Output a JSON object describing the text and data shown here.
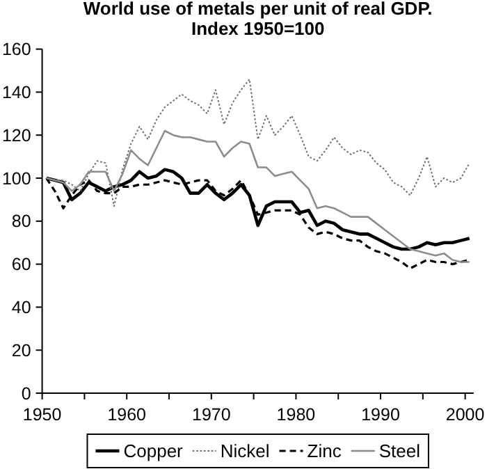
{
  "chart_data": {
    "type": "line",
    "title": "World use of metals per unit of real GDP.",
    "subtitle": "Index 1950=100",
    "x": [
      1950.5,
      1951.5,
      1952.5,
      1953.5,
      1954.5,
      1955.5,
      1956.5,
      1957.5,
      1958.5,
      1959.5,
      1960.5,
      1961.5,
      1962.5,
      1963.5,
      1964.5,
      1965.5,
      1966.5,
      1967.5,
      1968.5,
      1969.5,
      1970.5,
      1971.5,
      1972.5,
      1973.5,
      1974.5,
      1975.5,
      1976.5,
      1977.5,
      1978.5,
      1979.5,
      1980.5,
      1981.5,
      1982.5,
      1983.5,
      1984.5,
      1985.5,
      1986.5,
      1987.5,
      1988.5,
      1989.5,
      1990.5,
      1991.5,
      1992.5,
      1993.5,
      1994.5,
      1995.5,
      1996.5,
      1997.5,
      1998.5,
      1999.5,
      2000.5
    ],
    "series": [
      {
        "name": "Copper",
        "color": "#000000",
        "line_style": "solid",
        "values": [
          100,
          99,
          98,
          90,
          93,
          98,
          96,
          94,
          96,
          97,
          99,
          103,
          100,
          101,
          104,
          103,
          100,
          93,
          93,
          97,
          93,
          90,
          93,
          97,
          92,
          78,
          87,
          89,
          89,
          89,
          84,
          85,
          78,
          80,
          79,
          76,
          75,
          74,
          74,
          72,
          70,
          68,
          67,
          67,
          68,
          70,
          69,
          70,
          70,
          71,
          72
        ]
      },
      {
        "name": "Nickel",
        "color": "#6e6e6e",
        "line_style": "dotted",
        "values": [
          100,
          99,
          99,
          97,
          94,
          102,
          108,
          107,
          87,
          104,
          116,
          124,
          118,
          127,
          133,
          136,
          139,
          136,
          134,
          130,
          141,
          125,
          135,
          141,
          146,
          118,
          129,
          120,
          124,
          129,
          120,
          110,
          108,
          113,
          119,
          114,
          111,
          113,
          112,
          107,
          104,
          98,
          96,
          92,
          100,
          110,
          96,
          100,
          98,
          100,
          107
        ]
      },
      {
        "name": "Zinc",
        "color": "#000000",
        "line_style": "dashed",
        "values": [
          100,
          94,
          86,
          92,
          97,
          99,
          94,
          93,
          93,
          96,
          96,
          97,
          97,
          98,
          99,
          98,
          97,
          98,
          99,
          99,
          94,
          92,
          95,
          99,
          92,
          83,
          84,
          85,
          85,
          85,
          83,
          77,
          74,
          75,
          74,
          72,
          71,
          71,
          68,
          66,
          65,
          63,
          61,
          58,
          60,
          62,
          61,
          61,
          60,
          61,
          62
        ]
      },
      {
        "name": "Steel",
        "color": "#8c8c8c",
        "line_style": "solid",
        "values": [
          100,
          99,
          98,
          94,
          97,
          103,
          103,
          103,
          94,
          102,
          113,
          109,
          106,
          114,
          122,
          120,
          119,
          119,
          118,
          117,
          117,
          110,
          114,
          117,
          116,
          105,
          105,
          101,
          102,
          103,
          99,
          95,
          86,
          87,
          86,
          84,
          82,
          82,
          82,
          79,
          76,
          73,
          70,
          67,
          66,
          65,
          64,
          65,
          62,
          61,
          61
        ]
      }
    ],
    "xlim": [
      1950,
      2001
    ],
    "xticks": [
      1950,
      {
        "value": 1955,
        "label": null
      },
      1960,
      {
        "value": 1965,
        "label": null
      },
      1970,
      {
        "value": 1975,
        "label": null
      },
      1980,
      {
        "value": 1985,
        "label": null
      },
      1990,
      {
        "value": 1995,
        "label": null
      },
      2000
    ],
    "ylim": [
      0,
      160
    ],
    "yticks": [
      0,
      20,
      40,
      60,
      80,
      100,
      120,
      140,
      160
    ],
    "legend": "bottom"
  }
}
